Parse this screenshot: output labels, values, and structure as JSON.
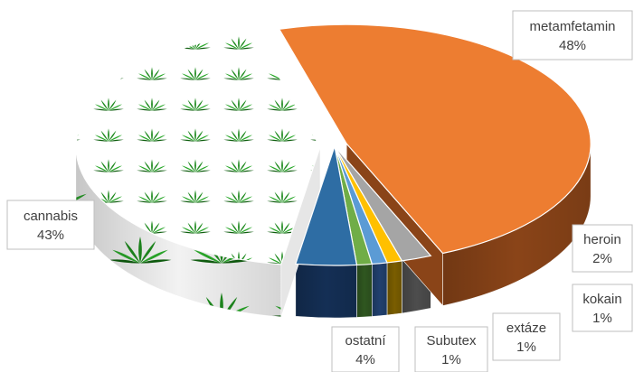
{
  "chart_data": {
    "type": "pie",
    "style": "3d-exploded",
    "slices": [
      {
        "label": "metamfetamin",
        "value": 48,
        "value_label": "48%",
        "color": "#ed7d31",
        "side_color": "#8a4418"
      },
      {
        "label": "heroin",
        "value": 2,
        "value_label": "2%",
        "color": "#a5a5a5",
        "side_color": "#4d4d4d"
      },
      {
        "label": "kokain",
        "value": 1,
        "value_label": "1%",
        "color": "#ffc000",
        "side_color": "#7a5d00"
      },
      {
        "label": "extáze",
        "value": 1,
        "value_label": "1%",
        "color": "#5b9bd5",
        "side_color": "#21406e"
      },
      {
        "label": "Subutex",
        "value": 1,
        "value_label": "1%",
        "color": "#70ad47",
        "side_color": "#2f5620"
      },
      {
        "label": "ostatní",
        "value": 4,
        "value_label": "4%",
        "color": "#2e6da4",
        "side_color": "#142f55"
      },
      {
        "label": "cannabis",
        "value": 43,
        "value_label": "43%",
        "color": "#ffffff",
        "side_color": "#c9c9c9",
        "pattern": "cannabis-leaf"
      }
    ],
    "legend": "none",
    "data_labels": "callout-boxes"
  }
}
